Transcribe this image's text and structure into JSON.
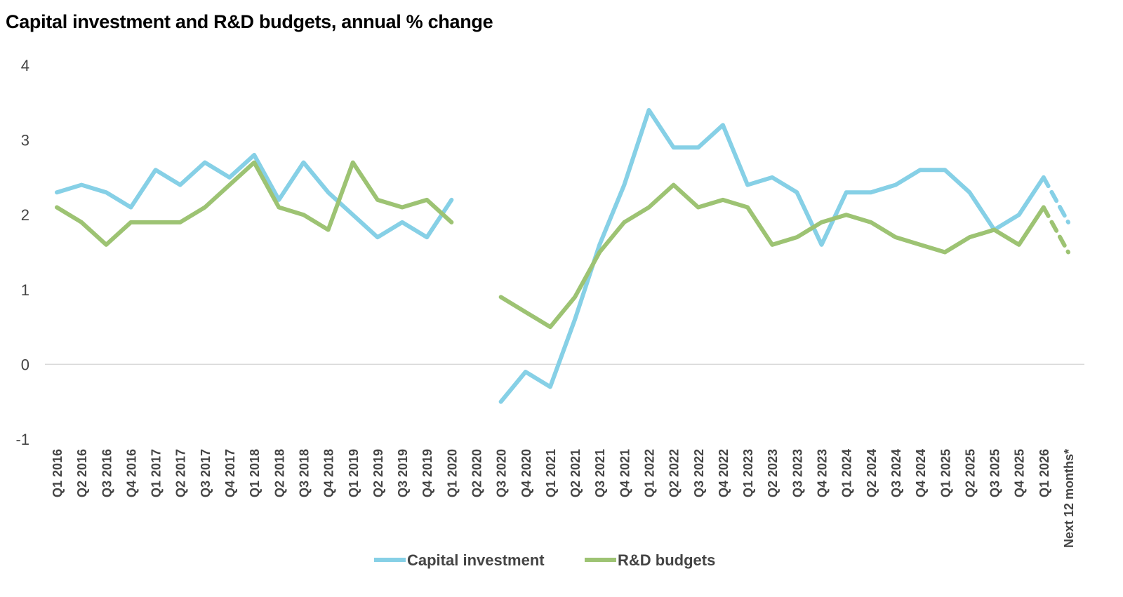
{
  "chart_data": {
    "type": "line",
    "title": "Capital investment and R&D budgets, annual % change",
    "xlabel": "",
    "ylabel": "",
    "ylim": [
      -1,
      4
    ],
    "yticks": [
      "4",
      "3",
      "2",
      "1",
      "0",
      "-1"
    ],
    "grid": "zero line only",
    "legend_placement": "bottom",
    "categories": [
      "Q1 2016",
      "Q2 2016",
      "Q3 2016",
      "Q4 2016",
      "Q1 2017",
      "Q2 2017",
      "Q3 2017",
      "Q4 2017",
      "Q1 2018",
      "Q2 2018",
      "Q3 2018",
      "Q4 2018",
      "Q1 2019",
      "Q2 2019",
      "Q3 2019",
      "Q4 2019",
      "Q1 2020",
      "Q2 2020",
      "Q3 2020",
      "Q4 2020",
      "Q1 2021",
      "Q2 2021",
      "Q3 2021",
      "Q4 2021",
      "Q1 2022",
      "Q2 2022",
      "Q3 2022",
      "Q4 2022",
      "Q1 2023",
      "Q2 2023",
      "Q3 2023",
      "Q4 2023",
      "Q1 2024",
      "Q2 2024",
      "Q3 2024",
      "Q4 2024",
      "Q1 2025",
      "Q2 2025",
      "Q3 2025",
      "Q4 2025",
      "Q1 2026",
      "Next 12 months*"
    ],
    "series": [
      {
        "name": "Capital investment",
        "color": "#86D0E6",
        "forecast_dashed_last": true,
        "values": [
          2.3,
          2.4,
          2.3,
          2.1,
          2.6,
          2.4,
          2.7,
          2.5,
          2.8,
          2.2,
          2.7,
          2.3,
          2.0,
          1.7,
          1.9,
          1.7,
          2.2,
          null,
          -0.5,
          -0.1,
          -0.3,
          0.6,
          1.6,
          2.4,
          3.4,
          2.9,
          2.9,
          3.2,
          2.4,
          2.5,
          2.3,
          1.6,
          2.3,
          2.3,
          2.4,
          2.6,
          2.6,
          2.3,
          1.8,
          2.0,
          2.5,
          1.9
        ]
      },
      {
        "name": "R&D budgets",
        "color": "#9DC373",
        "forecast_dashed_last": true,
        "values": [
          2.1,
          1.9,
          1.6,
          1.9,
          1.9,
          1.9,
          2.1,
          2.4,
          2.7,
          2.1,
          2.0,
          1.8,
          2.7,
          2.2,
          2.1,
          2.2,
          1.9,
          null,
          0.9,
          0.7,
          0.5,
          0.9,
          1.5,
          1.9,
          2.1,
          2.4,
          2.1,
          2.2,
          2.1,
          1.6,
          1.7,
          1.9,
          2.0,
          1.9,
          1.7,
          1.6,
          1.5,
          1.7,
          1.8,
          1.6,
          2.1,
          1.5
        ]
      }
    ]
  }
}
